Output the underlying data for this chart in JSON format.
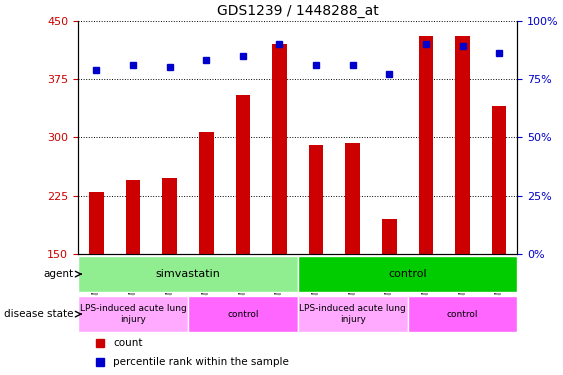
{
  "title": "GDS1239 / 1448288_at",
  "samples": [
    "GSM29715",
    "GSM29716",
    "GSM29717",
    "GSM29712",
    "GSM29713",
    "GSM29714",
    "GSM29709",
    "GSM29710",
    "GSM29711",
    "GSM29706",
    "GSM29707",
    "GSM29708"
  ],
  "counts": [
    230,
    245,
    248,
    307,
    355,
    420,
    290,
    293,
    195,
    430,
    430,
    340
  ],
  "percentiles": [
    79,
    81,
    80,
    83,
    85,
    90,
    81,
    81,
    77,
    90,
    89,
    86
  ],
  "ylim_left": [
    150,
    450
  ],
  "ylim_right": [
    0,
    100
  ],
  "yticks_left": [
    150,
    225,
    300,
    375,
    450
  ],
  "yticks_right": [
    0,
    25,
    50,
    75,
    100
  ],
  "bar_color": "#cc0000",
  "dot_color": "#0000cc",
  "bg_color": "#ffffff",
  "plot_bg": "#ffffff",
  "grid_color": "#000000",
  "agent_groups": [
    {
      "label": "simvastatin",
      "start": 0,
      "end": 6,
      "color": "#90ee90"
    },
    {
      "label": "control",
      "start": 6,
      "end": 12,
      "color": "#00cc00"
    }
  ],
  "disease_groups": [
    {
      "label": "LPS-induced acute lung\ninjury",
      "start": 0,
      "end": 3,
      "color": "#ffaaff"
    },
    {
      "label": "control",
      "start": 3,
      "end": 6,
      "color": "#ff66ff"
    },
    {
      "label": "LPS-induced acute lung\ninjury",
      "start": 6,
      "end": 9,
      "color": "#ffaaff"
    },
    {
      "label": "control",
      "start": 9,
      "end": 12,
      "color": "#ff66ff"
    }
  ],
  "legend_items": [
    {
      "label": "count",
      "color": "#cc0000",
      "marker": "s"
    },
    {
      "label": "percentile rank within the sample",
      "color": "#0000cc",
      "marker": "s"
    }
  ],
  "xlabel_color": "#cc0000",
  "ylabel_left_color": "#cc0000",
  "ylabel_right_color": "#0000cc"
}
